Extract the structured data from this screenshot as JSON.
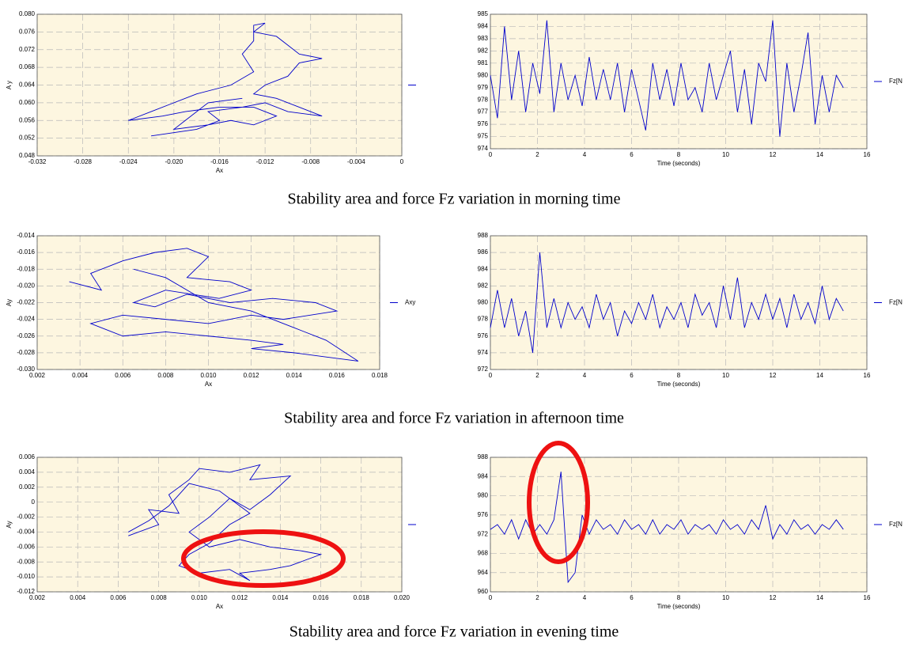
{
  "captions": [
    "Stability area and force Fz variation in morning time",
    "Stability area and force Fz variation in afternoon time",
    "Stability area and force Fz variation in evening time"
  ],
  "chart_data": [
    {
      "type": "line",
      "xlabel": "Ax",
      "ylabel": "A y",
      "grid": true,
      "legend": "right",
      "xlim": [
        -0.032,
        0
      ],
      "xticks": [
        -0.032,
        -0.028,
        -0.024,
        {
          "value": -0.02,
          "label": "-0.020"
        },
        -0.016,
        -0.012,
        -0.008,
        -0.004,
        0
      ],
      "ylim": [
        0.048,
        0.08
      ],
      "yticks": [
        0.048,
        0.052,
        0.056,
        {
          "value": 0.06,
          "label": "0.060"
        },
        0.064,
        0.068,
        0.072,
        0.076,
        {
          "value": 0.08,
          "label": "0.080"
        }
      ],
      "x": [
        -0.022,
        -0.018,
        -0.016,
        -0.017,
        -0.014,
        -0.012,
        -0.01,
        -0.007,
        -0.011,
        -0.013,
        -0.012,
        -0.01,
        -0.009,
        -0.007,
        -0.009,
        -0.01,
        -0.011,
        -0.013,
        -0.012,
        -0.013,
        -0.013,
        -0.014,
        -0.013,
        -0.015,
        -0.018,
        -0.02,
        -0.022,
        -0.024,
        -0.021,
        -0.019,
        -0.016,
        -0.013,
        -0.011,
        -0.013,
        -0.015,
        -0.017,
        -0.02,
        -0.019,
        -0.017,
        -0.014
      ],
      "series": [
        {
          "color": "#0000cc",
          "values": [
            0.0525,
            0.054,
            0.056,
            0.058,
            0.059,
            0.06,
            0.058,
            0.057,
            0.061,
            0.062,
            0.064,
            0.066,
            0.069,
            0.07,
            0.071,
            0.073,
            0.075,
            0.076,
            0.078,
            0.0775,
            0.074,
            0.071,
            0.067,
            0.064,
            0.062,
            0.06,
            0.058,
            0.056,
            0.057,
            0.058,
            0.059,
            0.059,
            0.057,
            0.055,
            0.056,
            0.055,
            0.054,
            0.056,
            0.06,
            0.061
          ]
        }
      ]
    },
    {
      "type": "line",
      "xlabel": "Time (seconds)",
      "grid": true,
      "legend": "right",
      "xlim": [
        0,
        16
      ],
      "xticks": [
        0,
        2,
        4,
        6,
        8,
        10,
        12,
        14,
        16
      ],
      "ylim": [
        974,
        985
      ],
      "yticks": [
        974,
        975,
        976,
        977,
        978,
        979,
        980,
        981,
        982,
        983,
        984,
        985
      ],
      "x": [
        0,
        0.3,
        0.6,
        0.9,
        1.2,
        1.5,
        1.8,
        2.1,
        2.4,
        2.7,
        3,
        3.3,
        3.6,
        3.9,
        4.2,
        4.5,
        4.8,
        5.1,
        5.4,
        5.7,
        6,
        6.3,
        6.6,
        6.9,
        7.2,
        7.5,
        7.8,
        8.1,
        8.4,
        8.7,
        9,
        9.3,
        9.6,
        9.9,
        10.2,
        10.5,
        10.8,
        11.1,
        11.4,
        11.7,
        12,
        12.3,
        12.6,
        12.9,
        13.2,
        13.5,
        13.8,
        14.1,
        14.4,
        14.7,
        15
      ],
      "series": [
        {
          "name": "Fz[N",
          "color": "#0000cc",
          "values": [
            980,
            976.5,
            984,
            978,
            982,
            977,
            981,
            978.5,
            984.5,
            977,
            981,
            978,
            980,
            977.5,
            981.5,
            978,
            980.5,
            978,
            981,
            977,
            980.5,
            978,
            975.5,
            981,
            978,
            980.5,
            977.5,
            981,
            978,
            979,
            977,
            981,
            978,
            980,
            982,
            977,
            980.5,
            976,
            981,
            979.5,
            984.5,
            975,
            981,
            977,
            980,
            983.5,
            976,
            980,
            977,
            980,
            979
          ]
        }
      ]
    },
    {
      "type": "line",
      "xlabel": "Ax",
      "ylabel": "Ay",
      "grid": true,
      "legend": "right",
      "xlim": [
        0.002,
        0.018
      ],
      "xticks": [
        0.002,
        0.004,
        0.006,
        0.008,
        {
          "value": 0.01,
          "label": "0.010"
        },
        0.012,
        0.014,
        0.016,
        0.018
      ],
      "ylim": [
        -0.03,
        -0.014
      ],
      "yticks": [
        {
          "value": -0.03,
          "label": "-0.030"
        },
        -0.028,
        -0.026,
        -0.024,
        -0.022,
        {
          "value": -0.02,
          "label": "-0.020"
        },
        -0.018,
        -0.016,
        -0.014
      ],
      "x": [
        0.0035,
        0.005,
        0.0045,
        0.006,
        0.0075,
        0.009,
        0.01,
        0.009,
        0.011,
        0.012,
        0.0105,
        0.008,
        0.0065,
        0.0075,
        0.009,
        0.011,
        0.013,
        0.015,
        0.016,
        0.0135,
        0.012,
        0.01,
        0.008,
        0.006,
        0.0045,
        0.006,
        0.008,
        0.01,
        0.012,
        0.0135,
        0.012,
        0.014,
        0.0155,
        0.017,
        0.0155,
        0.014,
        0.012,
        0.01,
        0.008,
        0.0065
      ],
      "series": [
        {
          "name": "Axy",
          "color": "#0000cc",
          "values": [
            -0.0195,
            -0.0205,
            -0.0185,
            -0.017,
            -0.016,
            -0.0155,
            -0.0165,
            -0.019,
            -0.0195,
            -0.0205,
            -0.0215,
            -0.0205,
            -0.022,
            -0.0225,
            -0.021,
            -0.022,
            -0.0215,
            -0.022,
            -0.023,
            -0.024,
            -0.0235,
            -0.0245,
            -0.024,
            -0.0235,
            -0.0245,
            -0.026,
            -0.0255,
            -0.026,
            -0.0265,
            -0.027,
            -0.0275,
            -0.028,
            -0.0285,
            -0.029,
            -0.0265,
            -0.025,
            -0.023,
            -0.022,
            -0.019,
            -0.018
          ]
        }
      ]
    },
    {
      "type": "line",
      "xlabel": "Time (seconds)",
      "grid": true,
      "legend": "right",
      "xlim": [
        0,
        16
      ],
      "xticks": [
        0,
        2,
        4,
        6,
        8,
        10,
        12,
        14,
        16
      ],
      "ylim": [
        972,
        988
      ],
      "yticks": [
        972,
        974,
        976,
        978,
        980,
        982,
        984,
        986,
        988
      ],
      "x": [
        0,
        0.3,
        0.6,
        0.9,
        1.2,
        1.5,
        1.8,
        2.1,
        2.4,
        2.7,
        3,
        3.3,
        3.6,
        3.9,
        4.2,
        4.5,
        4.8,
        5.1,
        5.4,
        5.7,
        6,
        6.3,
        6.6,
        6.9,
        7.2,
        7.5,
        7.8,
        8.1,
        8.4,
        8.7,
        9,
        9.3,
        9.6,
        9.9,
        10.2,
        10.5,
        10.8,
        11.1,
        11.4,
        11.7,
        12,
        12.3,
        12.6,
        12.9,
        13.2,
        13.5,
        13.8,
        14.1,
        14.4,
        14.7,
        15
      ],
      "series": [
        {
          "name": "Fz[N",
          "color": "#0000cc",
          "values": [
            977,
            981.5,
            977,
            980.5,
            976,
            979,
            974,
            986,
            977,
            980.5,
            977,
            980,
            978,
            979.5,
            977,
            981,
            978,
            980,
            976,
            979,
            977.5,
            980,
            978,
            981,
            977,
            979.5,
            978,
            980,
            977,
            981,
            978.5,
            980,
            977,
            982,
            978,
            983,
            977,
            980,
            978,
            981,
            978,
            980.5,
            977,
            981,
            978,
            980,
            977.5,
            982,
            978,
            980.5,
            979
          ]
        }
      ]
    },
    {
      "type": "line",
      "xlabel": "Ax",
      "ylabel": "Ay",
      "grid": true,
      "legend": "right",
      "xlim": [
        0.002,
        0.02
      ],
      "xticks": [
        0.002,
        0.004,
        0.006,
        0.008,
        {
          "value": 0.01,
          "label": "0.010"
        },
        0.012,
        0.014,
        0.016,
        0.018,
        {
          "value": 0.02,
          "label": "0.020"
        }
      ],
      "ylim": [
        -0.012,
        0.006
      ],
      "yticks": [
        -0.012,
        {
          "value": -0.01,
          "label": "-0.010"
        },
        -0.008,
        -0.006,
        -0.004,
        -0.002,
        0,
        0.002,
        0.004,
        0.006
      ],
      "x": [
        0.0065,
        0.008,
        0.0075,
        0.009,
        0.0085,
        0.0095,
        0.01,
        0.0115,
        0.013,
        0.0125,
        0.0145,
        0.0135,
        0.0125,
        0.0115,
        0.0105,
        0.0095,
        0.0105,
        0.012,
        0.0135,
        0.015,
        0.016,
        0.0145,
        0.0135,
        0.012,
        0.0125,
        0.0115,
        0.01,
        0.009,
        0.0095,
        0.0105,
        0.0115,
        0.0125,
        0.011,
        0.0095,
        0.0085,
        0.0075,
        0.0065
      ],
      "series": [
        {
          "color": "#0000cc",
          "values": [
            -0.0045,
            -0.003,
            -0.001,
            -0.0015,
            0.001,
            0.003,
            0.0045,
            0.004,
            0.005,
            0.003,
            0.0035,
            0.001,
            -0.001,
            0.0005,
            -0.002,
            -0.004,
            -0.006,
            -0.005,
            -0.006,
            -0.0065,
            -0.007,
            -0.0085,
            -0.009,
            -0.0095,
            -0.0105,
            -0.009,
            -0.0095,
            -0.0085,
            -0.007,
            -0.0055,
            -0.003,
            -0.0015,
            0.0015,
            0.0025,
            -0.0005,
            -0.0025,
            -0.004
          ]
        }
      ]
    },
    {
      "type": "line",
      "xlabel": "Time (seconds)",
      "grid": true,
      "legend": "right",
      "xlim": [
        0,
        16
      ],
      "xticks": [
        0,
        2,
        4,
        6,
        8,
        10,
        12,
        14,
        16
      ],
      "ylim": [
        960,
        988
      ],
      "yticks": [
        960,
        964,
        968,
        972,
        976,
        980,
        984,
        988
      ],
      "x": [
        0,
        0.3,
        0.6,
        0.9,
        1.2,
        1.5,
        1.8,
        2.1,
        2.4,
        2.7,
        3,
        3.3,
        3.6,
        3.9,
        4.2,
        4.5,
        4.8,
        5.1,
        5.4,
        5.7,
        6,
        6.3,
        6.6,
        6.9,
        7.2,
        7.5,
        7.8,
        8.1,
        8.4,
        8.7,
        9,
        9.3,
        9.6,
        9.9,
        10.2,
        10.5,
        10.8,
        11.1,
        11.4,
        11.7,
        12,
        12.3,
        12.6,
        12.9,
        13.2,
        13.5,
        13.8,
        14.1,
        14.4,
        14.7,
        15
      ],
      "series": [
        {
          "name": "Fz[N",
          "color": "#0000cc",
          "values": [
            973,
            974,
            972,
            975,
            971,
            975,
            972,
            974,
            972,
            975,
            985,
            962,
            964,
            976,
            972,
            975,
            973,
            974,
            972,
            975,
            973,
            974,
            972,
            975,
            972,
            974,
            973,
            975,
            972,
            974,
            973,
            974,
            972,
            975,
            973,
            974,
            972,
            975,
            973,
            978,
            971,
            974,
            972,
            975,
            973,
            974,
            972,
            974,
            973,
            975,
            973
          ]
        }
      ]
    }
  ]
}
